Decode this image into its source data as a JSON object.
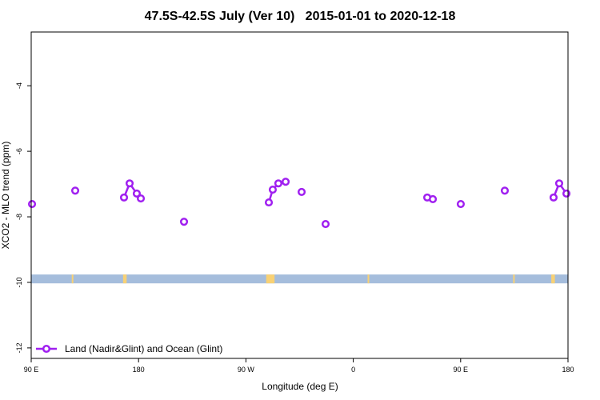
{
  "chart_data": {
    "type": "line",
    "title": "47.5S-42.5S July (Ver 10)   2015-01-01 to 2020-12-18",
    "x_label": "Longitude (deg E)",
    "y_label": "XCO2 - MLO trend (ppm)",
    "xlim": [
      90,
      540
    ],
    "ylim": [
      -12.32,
      -2.36
    ],
    "xticks": [
      {
        "value": 90,
        "label": "90 E"
      },
      180,
      {
        "value": 270,
        "label": "90 W"
      },
      {
        "value": 360,
        "label": "0"
      },
      {
        "value": 450,
        "label": "90 E"
      },
      {
        "value": 540,
        "label": "180"
      }
    ],
    "yticks": [
      -12,
      -10,
      -8,
      -6,
      -4
    ],
    "band": {
      "range": [
        -10.03,
        -9.76
      ],
      "color": "#a5bddc"
    },
    "band_highlights": {
      "color": "#f8d175",
      "ranges": [
        [
          124,
          125
        ],
        [
          167,
          170
        ],
        [
          287,
          294
        ],
        [
          372,
          373
        ],
        [
          494,
          495
        ],
        [
          526,
          529
        ]
      ]
    },
    "legend": "bottom-left",
    "series": [
      {
        "name": "Land (Nadir&Glint) and Ocean (Glint)",
        "color": "#a020f0",
        "x": [
          90.7,
          null,
          126.9,
          null,
          167.8,
          172.5,
          178.5,
          181.9,
          null,
          218.1,
          null,
          289.2,
          292.5,
          297.2,
          303.3,
          null,
          316.7,
          null,
          336.8,
          null,
          422.0,
          426.7,
          null,
          450.1,
          null,
          487.0,
          null,
          527.9,
          532.6,
          538.7
        ],
        "values": [
          -7.61,
          null,
          -7.2,
          null,
          -7.41,
          -6.98,
          -7.29,
          -7.44,
          null,
          -8.15,
          null,
          -7.56,
          -7.17,
          -6.98,
          -6.93,
          null,
          -7.24,
          null,
          -8.22,
          null,
          -7.41,
          -7.46,
          null,
          -7.61,
          null,
          -7.2,
          null,
          -7.41,
          -6.98,
          -7.29
        ]
      }
    ]
  }
}
